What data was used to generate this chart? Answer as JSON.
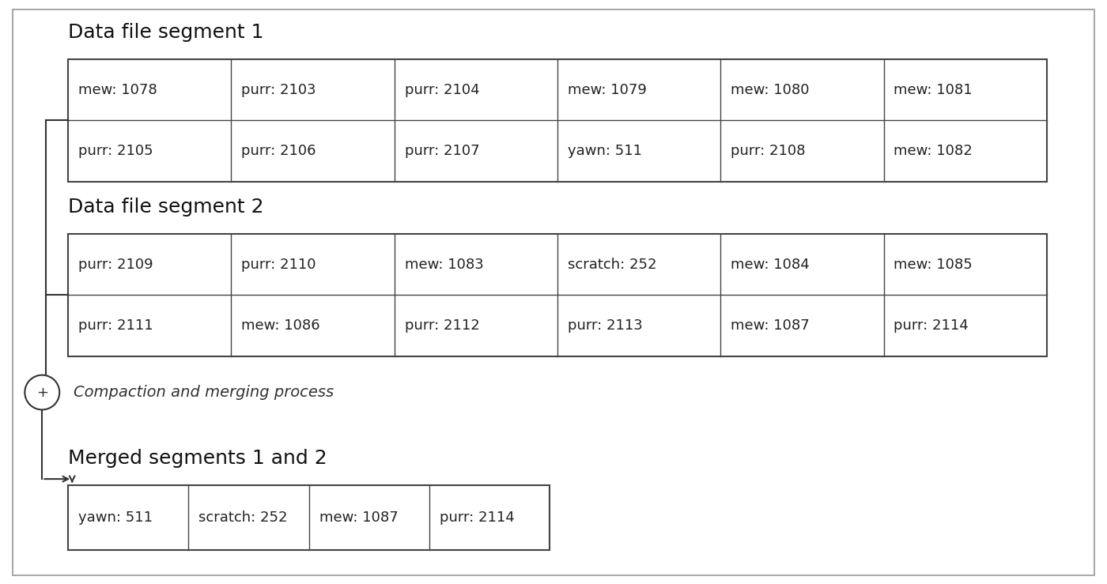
{
  "bg_color": "#ffffff",
  "text_color": "#111111",
  "segment1_title": "Data file segment 1",
  "segment2_title": "Data file segment 2",
  "merged_title": "Merged segments 1 and 2",
  "compaction_label": "Compaction and merging process",
  "segment1_rows": [
    [
      "mew: 1078",
      "purr: 2103",
      "purr: 2104",
      "mew: 1079",
      "mew: 1080",
      "mew: 1081"
    ],
    [
      "purr: 2105",
      "purr: 2106",
      "purr: 2107",
      "yawn: 511",
      "purr: 2108",
      "mew: 1082"
    ]
  ],
  "segment2_rows": [
    [
      "purr: 2109",
      "purr: 2110",
      "mew: 1083",
      "scratch: 252",
      "mew: 1084",
      "mew: 1085"
    ],
    [
      "purr: 2111",
      "mew: 1086",
      "purr: 2112",
      "purr: 2113",
      "mew: 1087",
      "purr: 2114"
    ]
  ],
  "merged_row": [
    "yawn: 511",
    "scratch: 252",
    "mew: 1087",
    "purr: 2114"
  ],
  "outer_border_color": "#aaaaaa",
  "table_border_color": "#444444",
  "title_fontsize": 18,
  "cell_fontsize": 13,
  "label_fontsize": 14
}
